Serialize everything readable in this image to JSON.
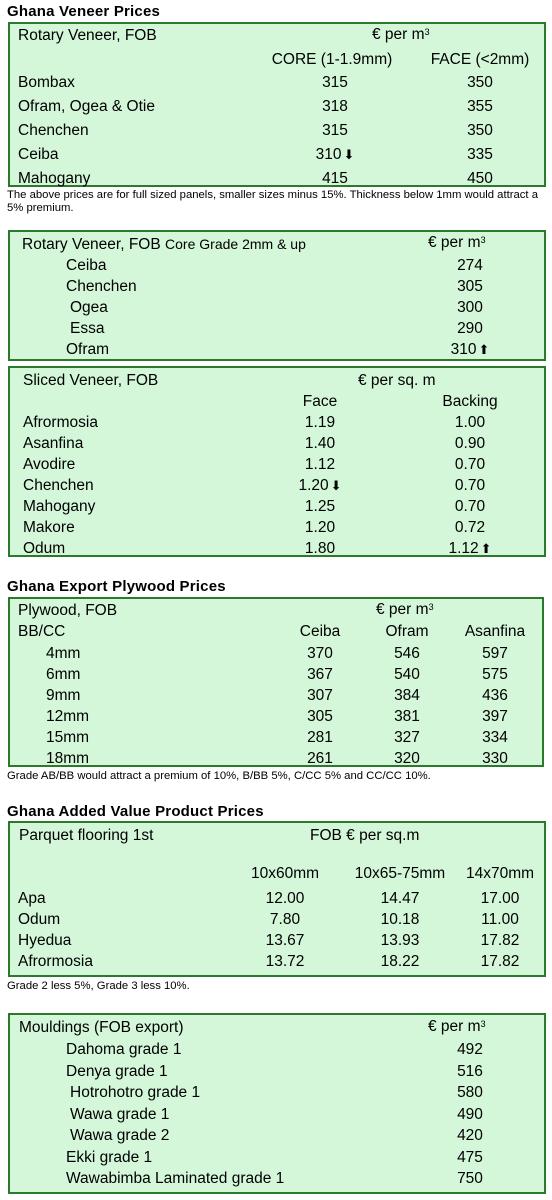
{
  "veneer": {
    "title": "Ghana Veneer Prices",
    "rotary": {
      "label": "Rotary Veneer, FOB",
      "unit": "€ per m",
      "unit_sup": "3",
      "col1": "CORE (1-1.9mm)",
      "col2": "FACE (<2mm)",
      "rows": [
        {
          "name": "Bombax",
          "core": "315",
          "face": "350"
        },
        {
          "name": "Ofram, Ogea  & Otie",
          "core": "318",
          "face": "355"
        },
        {
          "name": "Chenchen",
          "core": "315",
          "face": "350"
        },
        {
          "name": "Ceiba",
          "core": "310",
          "face": "335",
          "core_arrow": "down"
        },
        {
          "name": "Mahogany",
          "core": "415",
          "face": "450"
        }
      ],
      "note": "The above prices are for full sized panels, smaller sizes minus 15%. Thickness below 1mm would attract a 5% premium."
    },
    "rotary_core": {
      "label": "Rotary Veneer, FOB",
      "label_small": "Core Grade 2mm & up",
      "unit": "€ per m",
      "unit_sup": "3",
      "rows": [
        {
          "name": "Ceiba",
          "value": "274"
        },
        {
          "name": "Chenchen",
          "value": "305"
        },
        {
          "name": "Ogea",
          "value": "300"
        },
        {
          "name": "Essa",
          "value": "290"
        },
        {
          "name": "Ofram",
          "value": "310",
          "arrow": "up"
        }
      ]
    },
    "sliced": {
      "label": "Sliced Veneer, FOB",
      "unit": "€ per sq. m",
      "col1": "Face",
      "col2": "Backing",
      "rows": [
        {
          "name": "Afrormosia",
          "face": "1.19",
          "backing": "1.00"
        },
        {
          "name": "Asanfina",
          "face": "1.40",
          "backing": "0.90"
        },
        {
          "name": "Avodire",
          "face": "1.12",
          "backing": "0.70"
        },
        {
          "name": "Chenchen",
          "face": "1.20",
          "backing": "0.70",
          "face_arrow": "down"
        },
        {
          "name": "Mahogany",
          "face": "1.25",
          "backing": "0.70"
        },
        {
          "name": "Makore",
          "face": "1.20",
          "backing": "0.72"
        },
        {
          "name": "Odum",
          "face": "1.80",
          "backing": "1.12",
          "backing_arrow": "up"
        }
      ]
    }
  },
  "plywood": {
    "title": "Ghana Export Plywood Prices",
    "label": "Plywood, FOB",
    "unit": "€ per m",
    "unit_sup": "3",
    "grade": "BB/CC",
    "cols": [
      "Ceiba",
      "Ofram",
      "Asanfina"
    ],
    "rows": [
      {
        "size": "4mm",
        "vals": [
          "370",
          "546",
          "597"
        ]
      },
      {
        "size": "6mm",
        "vals": [
          "367",
          "540",
          "575"
        ]
      },
      {
        "size": "9mm",
        "vals": [
          "307",
          "384",
          "436"
        ]
      },
      {
        "size": "12mm",
        "vals": [
          "305",
          "381",
          "397"
        ]
      },
      {
        "size": "15mm",
        "vals": [
          "281",
          "327",
          "334"
        ]
      },
      {
        "size": "18mm",
        "vals": [
          "261",
          "320",
          "330"
        ]
      }
    ],
    "note": "Grade AB/BB would attract a premium of 10%, B/BB 5%, C/CC 5% and CC/CC 10%."
  },
  "added_value": {
    "title": "Ghana Added Value Product Prices",
    "label": "Parquet flooring 1st",
    "unit": "FOB € per sq.m",
    "cols": [
      "10x60mm",
      "10x65-75mm",
      "14x70mm"
    ],
    "rows": [
      {
        "name": "Apa",
        "vals": [
          "12.00",
          "14.47",
          "17.00"
        ]
      },
      {
        "name": "Odum",
        "vals": [
          "7.80",
          "10.18",
          "11.00"
        ]
      },
      {
        "name": "Hyedua",
        "vals": [
          "13.67",
          "13.93",
          "17.82"
        ]
      },
      {
        "name": "Afrormosia",
        "vals": [
          "13.72",
          "18.22",
          "17.82"
        ]
      }
    ],
    "note": "Grade 2 less 5%, Grade 3 less 10%."
  },
  "mouldings": {
    "label": "Mouldings (FOB export)",
    "unit": "€ per m",
    "unit_sup": "3",
    "rows": [
      {
        "name": "Dahoma grade 1",
        "value": "492"
      },
      {
        "name": "Denya grade 1",
        "value": "516"
      },
      {
        "name": "Hotrohotro grade 1",
        "value": "580"
      },
      {
        "name": "Wawa grade 1",
        "value": "490"
      },
      {
        "name": "Wawa grade 2",
        "value": "420"
      },
      {
        "name": "Ekki grade 1",
        "value": "475"
      },
      {
        "name": "Wawabimba Laminated grade 1",
        "value": "750"
      }
    ]
  }
}
